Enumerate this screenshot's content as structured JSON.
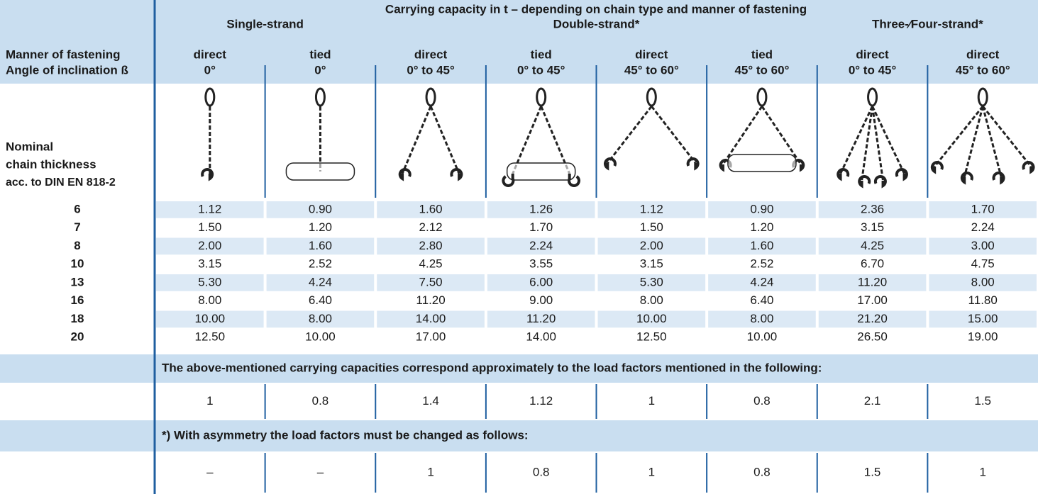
{
  "header": {
    "title": "Carrying capacity in t – depending on chain type and manner of fastening",
    "groups": [
      "Single-strand",
      "Double-strand*",
      "Three-⁄Four-strand*"
    ],
    "row_label_1": "Manner of fastening",
    "row_label_2": "Angle of inclination ß",
    "types": [
      "direct",
      "tied",
      "direct",
      "tied",
      "direct",
      "tied",
      "direct",
      "direct"
    ],
    "angles": [
      "0°",
      "0°",
      "0° to 45°",
      "0° to 45°",
      "45° to 60°",
      "45° to 60°",
      "0° to 45°",
      "45° to 60°"
    ],
    "thickness_label": [
      "Nominal",
      "chain thickness",
      "acc. to DIN EN 818-2"
    ]
  },
  "table": {
    "rows": [
      {
        "size": "6",
        "values": [
          "1.12",
          "0.90",
          "1.60",
          "1.26",
          "1.12",
          "0.90",
          "2.36",
          "1.70"
        ]
      },
      {
        "size": "7",
        "values": [
          "1.50",
          "1.20",
          "2.12",
          "1.70",
          "1.50",
          "1.20",
          "3.15",
          "2.24"
        ]
      },
      {
        "size": "8",
        "values": [
          "2.00",
          "1.60",
          "2.80",
          "2.24",
          "2.00",
          "1.60",
          "4.25",
          "3.00"
        ]
      },
      {
        "size": "10",
        "values": [
          "3.15",
          "2.52",
          "4.25",
          "3.55",
          "3.15",
          "2.52",
          "6.70",
          "4.75"
        ]
      },
      {
        "size": "13",
        "values": [
          "5.30",
          "4.24",
          "7.50",
          "6.00",
          "5.30",
          "4.24",
          "11.20",
          "8.00"
        ]
      },
      {
        "size": "16",
        "values": [
          "8.00",
          "6.40",
          "11.20",
          "9.00",
          "8.00",
          "6.40",
          "17.00",
          "11.80"
        ]
      },
      {
        "size": "18",
        "values": [
          "10.00",
          "8.00",
          "14.00",
          "11.20",
          "10.00",
          "8.00",
          "21.20",
          "15.00"
        ]
      },
      {
        "size": "20",
        "values": [
          "12.50",
          "10.00",
          "17.00",
          "14.00",
          "12.50",
          "10.00",
          "26.50",
          "19.00"
        ]
      }
    ]
  },
  "notes": [
    {
      "text": "The above-mentioned carrying capacities correspond approximately to the load factors mentioned in the following:",
      "factors": [
        "1",
        "0.8",
        "1.4",
        "1.12",
        "1",
        "0.8",
        "2.1",
        "1.5"
      ]
    },
    {
      "text": "*) With asymmetry the load factors must be changed as follows:",
      "factors": [
        "–",
        "–",
        "1",
        "0.8",
        "1",
        "0.8",
        "1.5",
        "1"
      ]
    }
  ]
}
